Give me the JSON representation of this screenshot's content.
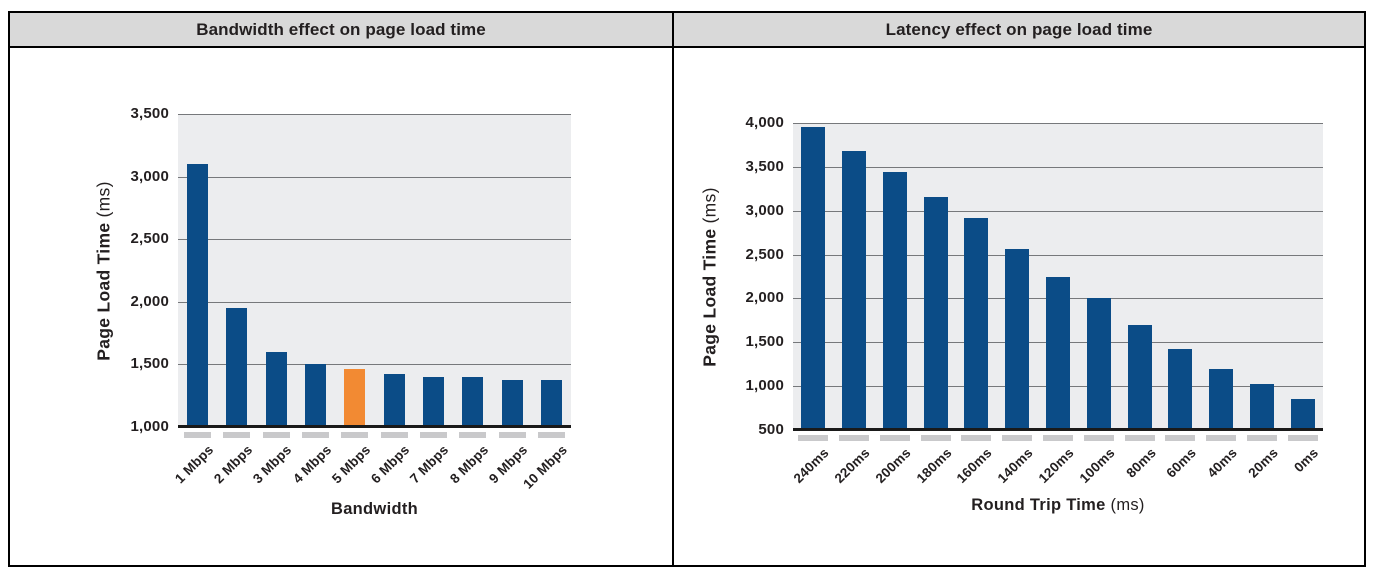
{
  "table": {
    "header_bg": "#d9d9d9",
    "border_color": "#000000"
  },
  "chart_data": [
    {
      "type": "bar",
      "title": "Bandwidth effect on page load time",
      "categories": [
        "1 Mbps",
        "2 Mbps",
        "3 Mbps",
        "4 Mbps",
        "5 Mbps",
        "6 Mbps",
        "7 Mbps",
        "8 Mbps",
        "9 Mbps",
        "10 Mbps"
      ],
      "values": [
        3100,
        1950,
        1600,
        1500,
        1460,
        1420,
        1400,
        1400,
        1375,
        1375
      ],
      "xlabel": "Bandwidth",
      "xlabel_unit": "",
      "ylabel": "Page Load Time",
      "ylabel_unit": "(ms)",
      "ylim": [
        1000,
        3500
      ],
      "ytick_step": 500,
      "grid": true,
      "legend_position": "none",
      "bar_color": "#0b4c87",
      "highlight_index": 4,
      "highlight_color": "#f28a33",
      "plot_bg": "#ecedef",
      "grid_color": "#76787b",
      "axis_color": "#1a1a1a",
      "tick_dash_color": "#c9c9cb"
    },
    {
      "type": "bar",
      "title": "Latency effect on page load time",
      "categories": [
        "240ms",
        "220ms",
        "200ms",
        "180ms",
        "160ms",
        "140ms",
        "120ms",
        "100ms",
        "80ms",
        "60ms",
        "40ms",
        "20ms",
        "0ms"
      ],
      "values": [
        3960,
        3680,
        3440,
        3160,
        2920,
        2560,
        2250,
        2000,
        1700,
        1420,
        1200,
        1020,
        850
      ],
      "xlabel": "Round Trip Time",
      "xlabel_unit": "(ms)",
      "ylabel": "Page Load Time",
      "ylabel_unit": "(ms)",
      "ylim": [
        500,
        4000
      ],
      "ytick_step": 500,
      "grid": true,
      "legend_position": "none",
      "bar_color": "#0b4c87",
      "highlight_index": null,
      "highlight_color": null,
      "plot_bg": "#ecedef",
      "grid_color": "#76787b",
      "axis_color": "#1a1a1a",
      "tick_dash_color": "#c9c9cb"
    }
  ]
}
